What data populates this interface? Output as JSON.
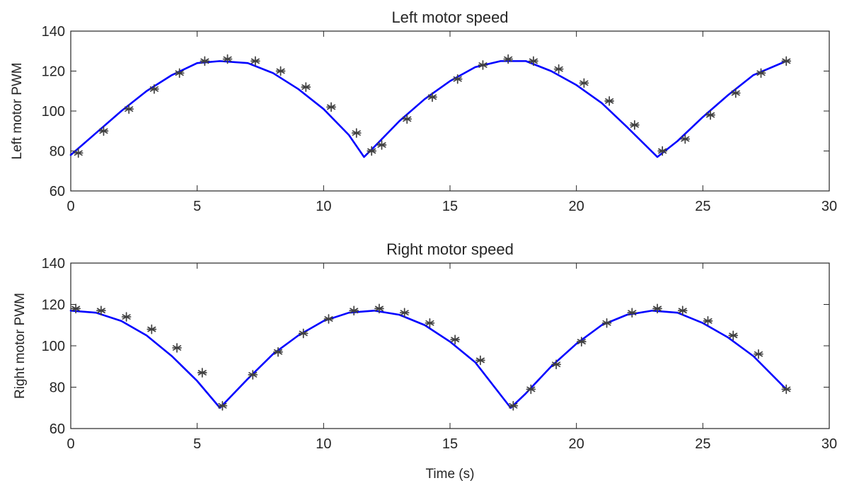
{
  "chart_data": [
    {
      "type": "line",
      "title": "Left motor speed",
      "xlabel": "",
      "ylabel": "Left motor PWM",
      "xlim": [
        0,
        30
      ],
      "ylim": [
        60,
        140
      ],
      "xticks": [
        0,
        5,
        10,
        15,
        20,
        25,
        30
      ],
      "yticks": [
        60,
        80,
        100,
        120,
        140
      ],
      "grid": false,
      "series": [
        {
          "style": "line",
          "color": "#0000ff",
          "x": [
            0,
            1,
            2,
            3,
            4,
            5,
            5.9,
            7,
            8,
            9,
            10,
            11,
            11.6,
            12,
            13,
            14,
            15,
            16,
            17,
            18,
            19,
            20,
            21,
            22,
            23.2,
            24,
            25,
            26,
            27,
            28.3
          ],
          "y": [
            78,
            89,
            100,
            110,
            118,
            124,
            125,
            124,
            119,
            111,
            101,
            88,
            77,
            82,
            95,
            106,
            115,
            122,
            125,
            125,
            120,
            113,
            104,
            92,
            77,
            85,
            97,
            108,
            118,
            125
          ]
        },
        {
          "style": "marker",
          "marker": "*",
          "color": "#404040",
          "x": [
            0.3,
            1.3,
            2.3,
            3.3,
            4.3,
            5.3,
            6.2,
            7.3,
            8.3,
            9.3,
            10.3,
            11.3,
            11.9,
            12.3,
            13.3,
            14.3,
            15.3,
            16.3,
            17.3,
            18.3,
            19.3,
            20.3,
            21.3,
            22.3,
            23.4,
            24.3,
            25.3,
            26.3,
            27.3,
            28.3
          ],
          "y": [
            79,
            90,
            101,
            111,
            119,
            125,
            126,
            125,
            120,
            112,
            102,
            89,
            80,
            83,
            96,
            107,
            116,
            123,
            126,
            125,
            121,
            114,
            105,
            93,
            80,
            86,
            98,
            109,
            119,
            125
          ]
        }
      ]
    },
    {
      "type": "line",
      "title": "Right motor speed",
      "xlabel": "Time (s)",
      "ylabel": "Right motor PWM",
      "xlim": [
        0,
        30
      ],
      "ylim": [
        60,
        140
      ],
      "xticks": [
        0,
        5,
        10,
        15,
        20,
        25,
        30
      ],
      "yticks": [
        60,
        80,
        100,
        120,
        140
      ],
      "grid": false,
      "series": [
        {
          "style": "line",
          "color": "#0000ff",
          "x": [
            0,
            1,
            2,
            3,
            4,
            5,
            5.9,
            7,
            8,
            9,
            10,
            11,
            12,
            13,
            14,
            15,
            16,
            17.4,
            18,
            19,
            20,
            21,
            22,
            23,
            24,
            25,
            26,
            27,
            28.3
          ],
          "y": [
            117,
            116,
            112,
            105,
            95,
            83,
            70,
            84,
            96,
            105,
            112,
            116,
            117,
            115,
            110,
            102,
            92,
            70,
            77,
            90,
            101,
            110,
            115,
            117,
            116,
            111,
            104,
            95,
            79
          ],
          "note_only": null
        },
        {
          "style": "marker",
          "marker": "*",
          "color": "#404040",
          "x": [
            0.2,
            1.2,
            2.2,
            3.2,
            4.2,
            5.2,
            6.0,
            7.2,
            8.2,
            9.2,
            10.2,
            11.2,
            12.2,
            13.2,
            14.2,
            15.2,
            16.2,
            17.5,
            18.2,
            19.2,
            20.2,
            21.2,
            22.2,
            23.2,
            24.2,
            25.2,
            26.2,
            27.2,
            28.3
          ],
          "y": [
            118,
            117,
            114,
            108,
            99,
            87,
            71,
            86,
            97,
            106,
            113,
            117,
            118,
            116,
            111,
            103,
            93,
            71,
            79,
            91,
            102,
            111,
            116,
            118,
            117,
            112,
            105,
            96,
            79
          ]
        }
      ]
    }
  ]
}
